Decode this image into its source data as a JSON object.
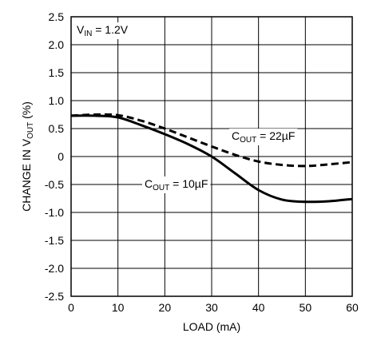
{
  "chart_data": {
    "type": "line",
    "title": "",
    "xlabel": "LOAD (mA)",
    "ylabel_parts": {
      "main": "CHANGE IN V",
      "sub": "OUT",
      "unit": " (%)"
    },
    "xlim": [
      0,
      60
    ],
    "ylim": [
      -2.5,
      2.5
    ],
    "xticks": [
      0,
      10,
      20,
      30,
      40,
      50,
      60
    ],
    "yticks": [
      "2.5",
      "2.0",
      "1.5",
      "1.0",
      "0.5",
      "0",
      "-0.5",
      "-1.0",
      "-1.5",
      "-2.0",
      "-2.5"
    ],
    "yticks_values": [
      2.5,
      2.0,
      1.5,
      1.0,
      0.5,
      0,
      -0.5,
      -1.0,
      -1.5,
      -2.0,
      -2.5
    ],
    "grid": true,
    "condition": {
      "main": "V",
      "sub": "IN",
      "rest": " = 1.2V"
    },
    "series": [
      {
        "label_main": "C",
        "label_sub": "OUT",
        "label_rest": " = 22µF",
        "style": "dashed",
        "color": "#000000",
        "x": [
          0,
          5,
          10,
          15,
          20,
          25,
          30,
          35,
          40,
          45,
          50,
          55,
          60
        ],
        "y": [
          0.73,
          0.75,
          0.74,
          0.64,
          0.5,
          0.34,
          0.18,
          0.03,
          -0.09,
          -0.15,
          -0.17,
          -0.14,
          -0.1
        ]
      },
      {
        "label_main": "C",
        "label_sub": "OUT",
        "label_rest": " = 10µF",
        "style": "solid",
        "color": "#000000",
        "x": [
          0,
          5,
          10,
          15,
          20,
          25,
          30,
          35,
          40,
          45,
          50,
          55,
          60
        ],
        "y": [
          0.73,
          0.73,
          0.7,
          0.56,
          0.4,
          0.22,
          0.0,
          -0.3,
          -0.6,
          -0.77,
          -0.81,
          -0.8,
          -0.76
        ]
      }
    ]
  }
}
